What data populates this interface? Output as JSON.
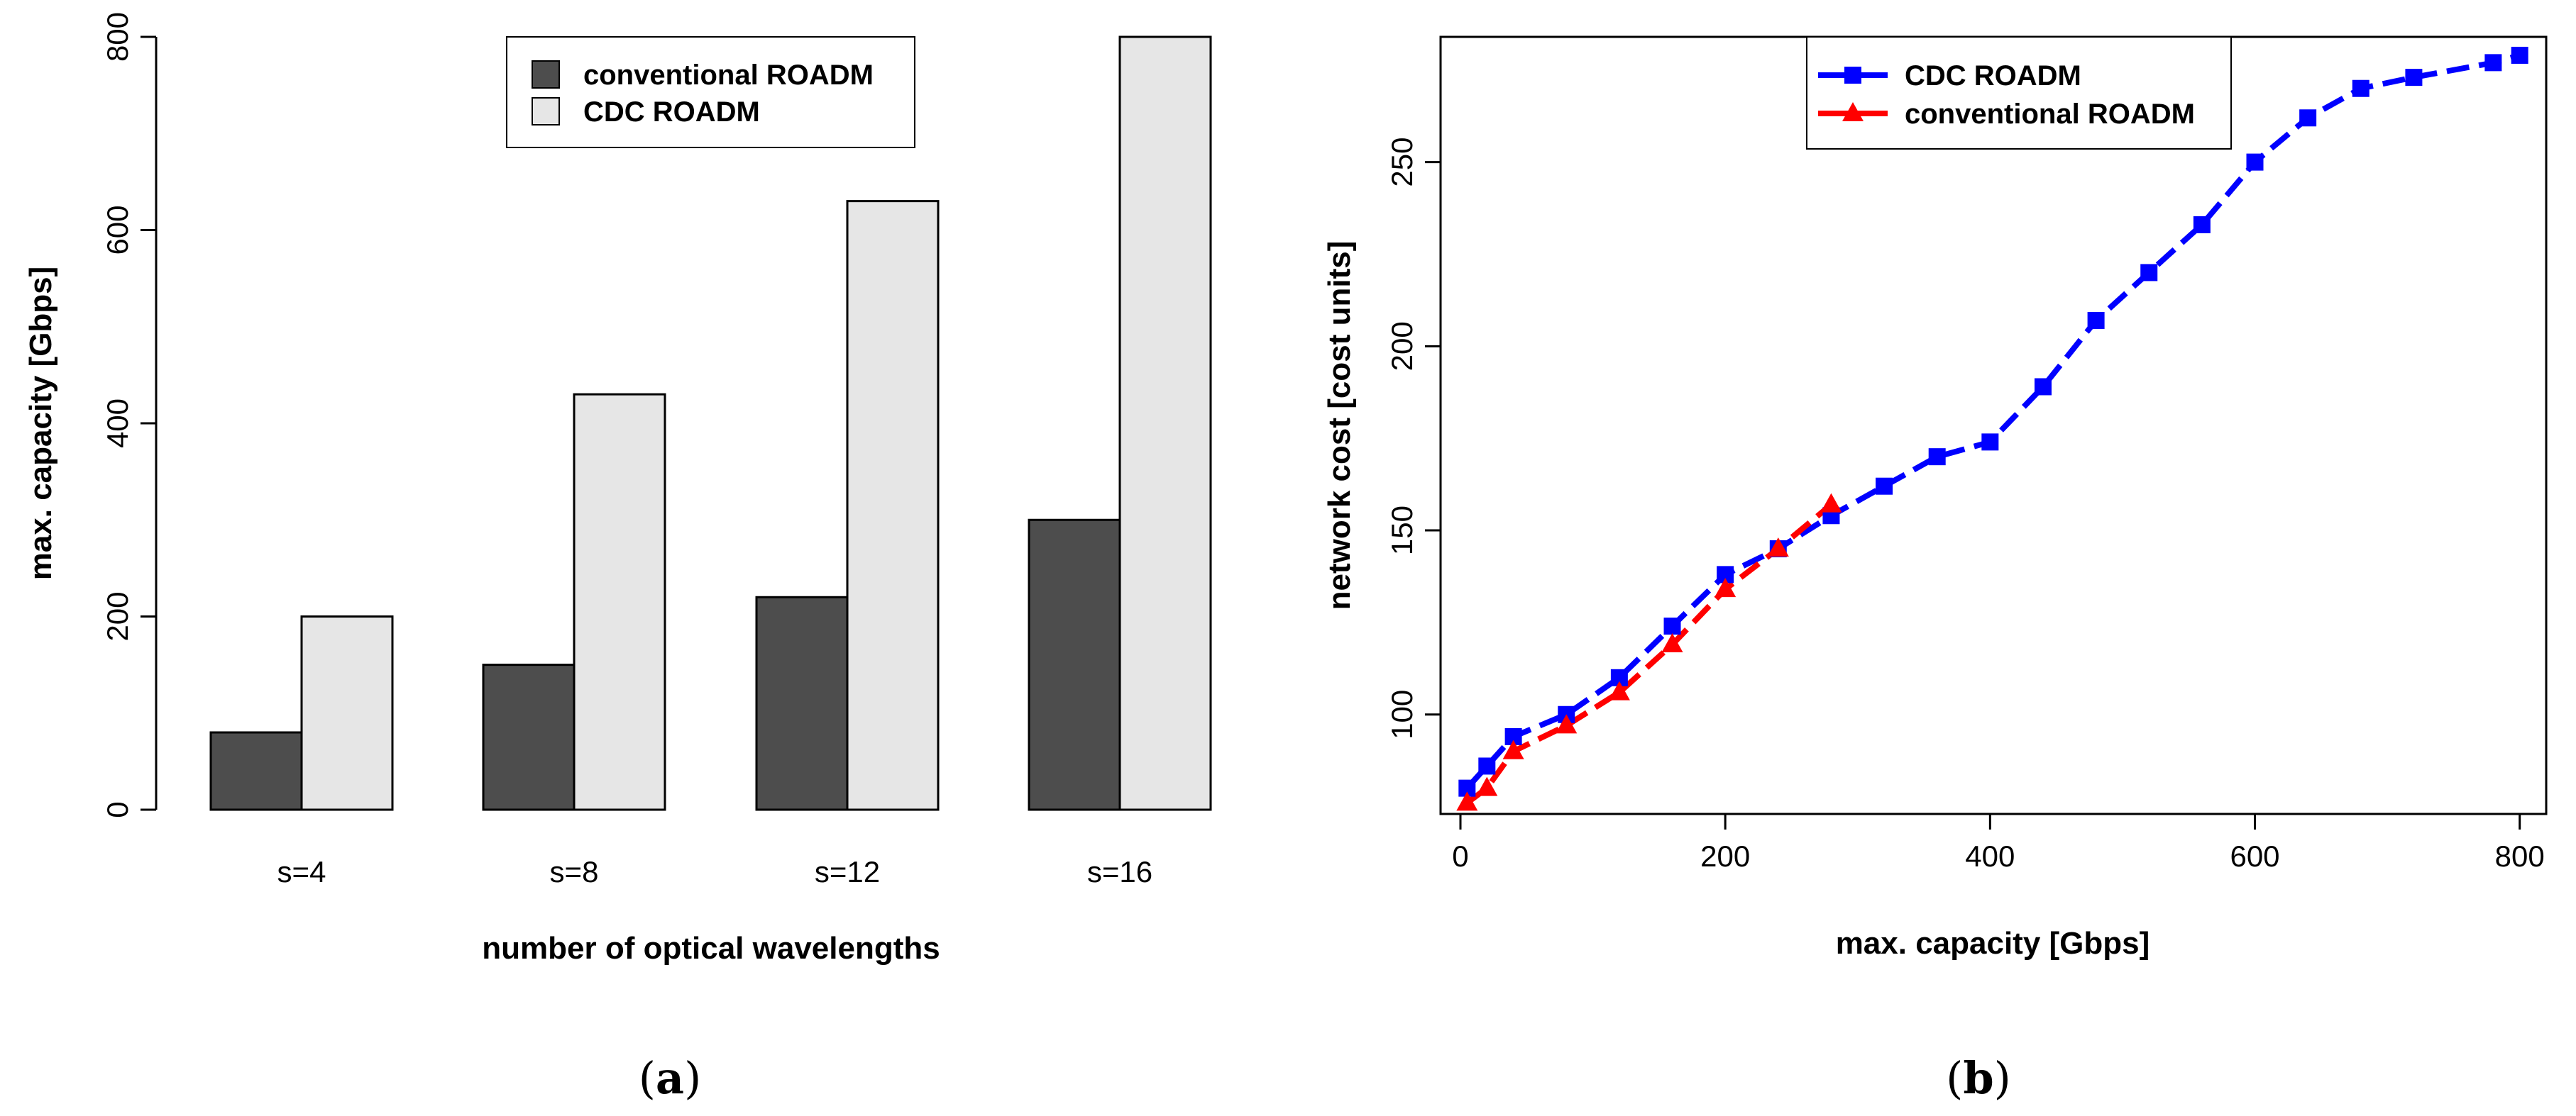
{
  "chart_data": [
    {
      "type": "bar",
      "panel_label": "a",
      "title": "",
      "xlabel": "number of optical wavelengths",
      "ylabel": "max. capacity [Gbps]",
      "ylim": [
        0,
        800
      ],
      "yticks": [
        0,
        200,
        400,
        600,
        800
      ],
      "categories": [
        "s=4",
        "s=8",
        "s=12",
        "s=16"
      ],
      "series": [
        {
          "name": "conventional ROADM",
          "color": "#4d4d4d",
          "values": [
            80,
            150,
            220,
            300
          ]
        },
        {
          "name": "CDC ROADM",
          "color": "#e6e6e6",
          "values": [
            200,
            430,
            630,
            800
          ]
        }
      ],
      "legend_position": "top-right"
    },
    {
      "type": "line",
      "panel_label": "b",
      "title": "",
      "xlabel": "max. capacity [Gbps]",
      "ylabel": "network cost [cost units]",
      "xlim": [
        -15,
        820
      ],
      "ylim": [
        73,
        284
      ],
      "xticks": [
        0,
        200,
        400,
        600,
        800
      ],
      "yticks": [
        100,
        150,
        200,
        250
      ],
      "series": [
        {
          "name": "CDC ROADM",
          "color": "#0000ff",
          "marker": "square",
          "x": [
            5,
            20,
            40,
            80,
            120,
            160,
            200,
            240,
            280,
            320,
            360,
            400,
            440,
            480,
            520,
            560,
            600,
            640,
            680,
            720,
            780,
            800
          ],
          "y": [
            80,
            86,
            94,
            100,
            110,
            124,
            138,
            145,
            154,
            162,
            170,
            174,
            189,
            207,
            220,
            233,
            250,
            262,
            270,
            273,
            277,
            279
          ]
        },
        {
          "name": "conventional ROADM",
          "color": "#ff0000",
          "marker": "triangle",
          "x": [
            5,
            20,
            40,
            80,
            120,
            160,
            200,
            240,
            280
          ],
          "y": [
            76,
            80,
            90,
            97,
            106,
            119,
            134,
            145,
            157
          ]
        }
      ],
      "legend_position": "top-center"
    }
  ]
}
